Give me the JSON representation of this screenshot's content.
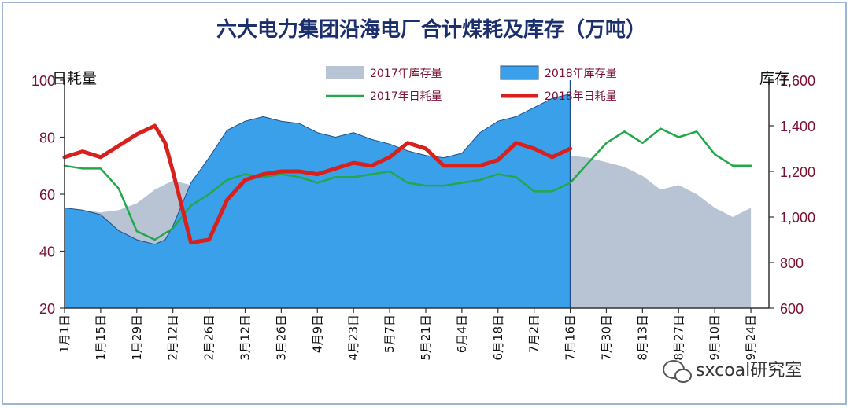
{
  "chart_data": {
    "type": "area",
    "title": "六大电力集团沿海电厂合计煤耗及库存（万吨）",
    "ylabel_left": "日耗量",
    "ylabel_right": "库存",
    "ylim_left": [
      20,
      100
    ],
    "ylim_right": [
      600,
      1600
    ],
    "yticks_left": [
      "20",
      "40",
      "60",
      "80",
      "100"
    ],
    "yticks_right": [
      "600",
      "800",
      "1,000",
      "1,200",
      "1,400",
      "1,600"
    ],
    "x_tick_labels": [
      "1月1日",
      "1月15日",
      "1月29日",
      "2月12日",
      "2月26日",
      "3月12日",
      "3月26日",
      "4月9日",
      "4月23日",
      "5月7日",
      "5月21日",
      "6月4日",
      "6月18日",
      "7月2日",
      "7月16日",
      "7月30日",
      "8月13日",
      "8月27日",
      "9月10日",
      "9月24日"
    ],
    "colors": {
      "stock_2017": "#b8c4d4",
      "stock_2018": "#3aa0ea",
      "daily_2017": "#22a84a",
      "daily_2018": "#d8201c",
      "axis": "#7b1030"
    },
    "legend": [
      "2017年库存量",
      "2018年库存量",
      "2017年日耗量",
      "2018年日耗量"
    ],
    "series": [
      {
        "name": "2017年库存量",
        "axis": "right",
        "type": "area",
        "x_day": [
          0,
          7,
          14,
          21,
          28,
          35,
          42,
          49,
          56,
          63,
          70,
          77,
          84,
          91,
          98,
          105,
          112,
          119,
          126,
          133,
          140,
          147,
          154,
          161,
          168,
          175,
          182,
          189,
          196,
          203,
          210,
          217,
          224,
          231,
          238,
          245,
          252,
          259,
          266
        ],
        "values": [
          1040,
          1030,
          1020,
          1030,
          1060,
          1120,
          1160,
          1140,
          1060,
          1000,
          980,
          960,
          940,
          920,
          920,
          940,
          980,
          1020,
          1060,
          1100,
          1140,
          1180,
          1200,
          1200,
          1220,
          1240,
          1240,
          1260,
          1270,
          1260,
          1240,
          1220,
          1180,
          1120,
          1140,
          1100,
          1040,
          1000,
          1040
        ]
      },
      {
        "name": "2018年库存量",
        "axis": "right",
        "type": "area",
        "x_day": [
          0,
          7,
          14,
          21,
          28,
          35,
          39,
          42,
          49,
          56,
          63,
          70,
          77,
          84,
          91,
          98,
          105,
          112,
          119,
          126,
          133,
          140,
          147,
          154,
          161,
          168,
          175,
          182,
          189,
          196
        ],
        "values": [
          1040,
          1030,
          1010,
          940,
          900,
          880,
          900,
          960,
          1150,
          1260,
          1380,
          1420,
          1440,
          1420,
          1410,
          1370,
          1350,
          1370,
          1340,
          1320,
          1290,
          1270,
          1260,
          1280,
          1370,
          1420,
          1440,
          1480,
          1520,
          1540
        ]
      },
      {
        "name": "2017年日耗量",
        "axis": "left",
        "type": "line",
        "x_day": [
          0,
          7,
          14,
          21,
          28,
          35,
          42,
          49,
          56,
          63,
          70,
          77,
          84,
          91,
          98,
          105,
          112,
          119,
          126,
          133,
          140,
          147,
          154,
          161,
          168,
          175,
          182,
          189,
          196,
          203,
          210,
          217,
          224,
          231,
          238,
          245,
          252,
          259,
          266
        ],
        "values": [
          70,
          69,
          69,
          62,
          47,
          44,
          48,
          56,
          60,
          65,
          67,
          66,
          67,
          66,
          64,
          66,
          66,
          67,
          68,
          64,
          63,
          63,
          64,
          65,
          67,
          66,
          61,
          61,
          64,
          71,
          78,
          82,
          78,
          83,
          80,
          82,
          74,
          70,
          70
        ]
      },
      {
        "name": "2018年日耗量",
        "axis": "left",
        "type": "line",
        "x_day": [
          0,
          7,
          14,
          21,
          28,
          35,
          39,
          42,
          49,
          56,
          63,
          70,
          77,
          84,
          91,
          98,
          105,
          112,
          119,
          126,
          133,
          140,
          147,
          154,
          161,
          168,
          175,
          182,
          189,
          196
        ],
        "values": [
          73,
          75,
          73,
          77,
          81,
          84,
          78,
          68,
          43,
          44,
          58,
          65,
          67,
          68,
          68,
          67,
          69,
          71,
          70,
          73,
          78,
          76,
          70,
          70,
          70,
          72,
          78,
          76,
          73,
          76
        ]
      }
    ]
  },
  "watermark": "sxcoal研究室"
}
